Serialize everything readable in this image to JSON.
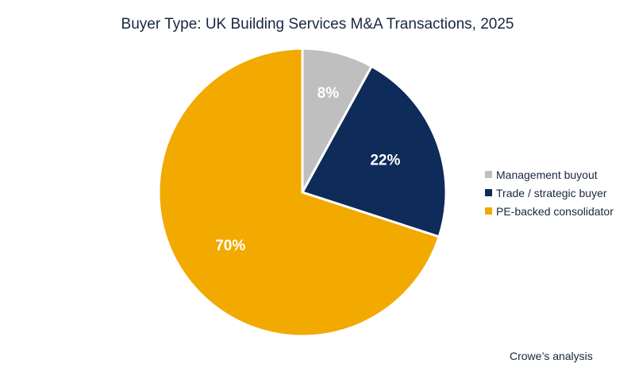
{
  "chart_data": {
    "type": "pie",
    "title": "Buyer Type: UK Building Services M&A Transactions, 2025",
    "categories": [
      "Management buyout",
      "Trade / strategic buyer",
      "PE-backed consolidator"
    ],
    "values": [
      8,
      22,
      70
    ],
    "data_labels": [
      "8%",
      "22%",
      "70%"
    ],
    "colors": [
      "#bfbfbf",
      "#0e2b59",
      "#f2a900"
    ],
    "start_angle": "top, clockwise",
    "legend_position": "right"
  },
  "source": "Crowe’s analysis"
}
